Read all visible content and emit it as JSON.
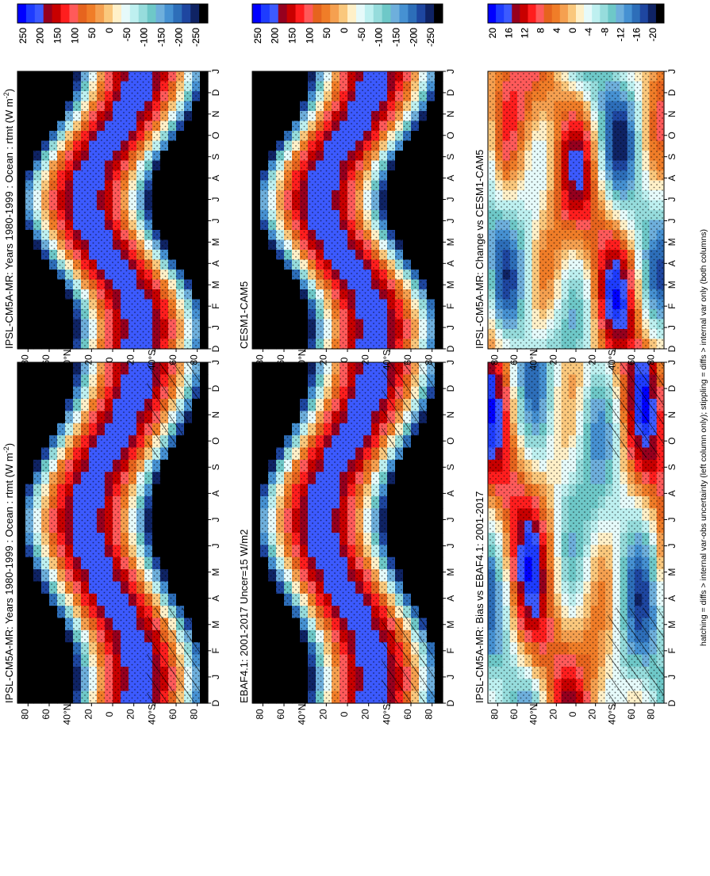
{
  "figure": {
    "footnote": "hatching = diffs > internal var-obs uncertainty (left column only); stippling = diffs > internal var only (both columns)"
  },
  "chart_data": [
    {
      "type": "heatmap",
      "id": "ipsl_abs_left",
      "title": "IPSL-CM5A-MR: Years 1980-1999 : Ocean : rtmt (W m",
      "title_sup": "-2",
      "title_close": ")",
      "x_ticks": [
        "D",
        "J",
        "F",
        "M",
        "A",
        "M",
        "J",
        "J",
        "A",
        "S",
        "O",
        "N",
        "D",
        "J"
      ],
      "y_ticks": [
        "80",
        "60",
        "40",
        "20",
        "0",
        "20",
        "40",
        "60",
        "80"
      ],
      "y_tick_suffix": {
        "2": "°N",
        "6": "°S"
      },
      "stipple": true,
      "hatch": true,
      "colorbar": {
        "labels": [
          "250",
          "200",
          "150",
          "100",
          "50",
          "0",
          "-50",
          "-100",
          "-150",
          "-200",
          "-250"
        ]
      }
    },
    {
      "type": "heatmap",
      "id": "ipsl_abs_right",
      "title": "IPSL-CM5A-MR: Years 1980-1999 : Ocean : rtmt (W m",
      "title_sup": "-2",
      "title_close": ")",
      "x_ticks": [
        "D",
        "J",
        "F",
        "M",
        "A",
        "M",
        "J",
        "J",
        "A",
        "S",
        "O",
        "N",
        "D",
        "J"
      ],
      "y_ticks": [
        "80",
        "60",
        "40",
        "20",
        "0",
        "20",
        "40",
        "60",
        "80"
      ],
      "y_tick_suffix": {
        "2": "°N",
        "6": "°S"
      },
      "stipple": true,
      "hatch": false,
      "colorbar": {
        "labels": [
          "250",
          "200",
          "150",
          "100",
          "50",
          "0",
          "-50",
          "-100",
          "-150",
          "-200",
          "-250"
        ]
      }
    },
    {
      "type": "heatmap",
      "id": "ebaf_left",
      "title": "EBAF4.1: 2001-2017 Uncer=15 W/m2",
      "x_ticks": [
        "D",
        "J",
        "F",
        "M",
        "A",
        "M",
        "J",
        "J",
        "A",
        "S",
        "O",
        "N",
        "D",
        "J"
      ],
      "y_ticks": [
        "80",
        "60",
        "40",
        "20",
        "0",
        "20",
        "40",
        "60",
        "80"
      ],
      "y_tick_suffix": {
        "2": "°N",
        "6": "°S"
      },
      "stipple": true,
      "hatch": true,
      "colorbar": {
        "labels": [
          "250",
          "200",
          "150",
          "100",
          "50",
          "0",
          "-50",
          "-100",
          "-150",
          "-200",
          "-250"
        ]
      }
    },
    {
      "type": "heatmap",
      "id": "cesm_right",
      "title": "CESM1-CAM5",
      "x_ticks": [
        "D",
        "J",
        "F",
        "M",
        "A",
        "M",
        "J",
        "J",
        "A",
        "S",
        "O",
        "N",
        "D",
        "J"
      ],
      "y_ticks": [
        "80",
        "60",
        "40",
        "20",
        "0",
        "20",
        "40",
        "60",
        "80"
      ],
      "y_tick_suffix": {
        "2": "°N",
        "6": "°S"
      },
      "stipple": true,
      "hatch": false,
      "colorbar": {
        "labels": [
          "250",
          "200",
          "150",
          "100",
          "50",
          "0",
          "-50",
          "-100",
          "-150",
          "-200",
          "-250"
        ]
      }
    },
    {
      "type": "heatmap",
      "id": "bias_left",
      "title": "IPSL-CM5A-MR: Bias vs EBAF4.1: 2001-2017",
      "x_ticks": [
        "D",
        "J",
        "F",
        "M",
        "A",
        "M",
        "J",
        "J",
        "A",
        "S",
        "O",
        "N",
        "D",
        "J"
      ],
      "y_ticks": [
        "80",
        "60",
        "40",
        "20",
        "0",
        "20",
        "40",
        "60",
        "80"
      ],
      "y_tick_suffix": {
        "2": "°N",
        "6": "°S"
      },
      "stipple": true,
      "hatch": true,
      "colorbar": {
        "labels": [
          "20",
          "16",
          "12",
          "8",
          "4",
          "0",
          "-4",
          "-8",
          "-12",
          "-16",
          "-20"
        ]
      }
    },
    {
      "type": "heatmap",
      "id": "change_right",
      "title": "IPSL-CM5A-MR: Change vs CESM1-CAM5",
      "x_ticks": [
        "D",
        "J",
        "F",
        "M",
        "A",
        "M",
        "J",
        "J",
        "A",
        "S",
        "O",
        "N",
        "D",
        "J"
      ],
      "y_ticks": [
        "80",
        "60",
        "40",
        "20",
        "0",
        "20",
        "40",
        "60",
        "80"
      ],
      "y_tick_suffix": {
        "2": "°N",
        "6": "°S"
      },
      "stipple": true,
      "hatch": false,
      "colorbar": {
        "labels": [
          "20",
          "16",
          "12",
          "8",
          "4",
          "0",
          "-4",
          "-8",
          "-12",
          "-16",
          "-20"
        ]
      }
    }
  ],
  "colors": {
    "ramp": [
      "#0000ff",
      "#1e3cff",
      "#3c5aff",
      "#96001e",
      "#c80000",
      "#ff1e1e",
      "#ff5a5a",
      "#e6641e",
      "#f07d28",
      "#f5a050",
      "#fac87d",
      "#fff0c8",
      "#e6fafa",
      "#bef0f0",
      "#96dcdc",
      "#6ec8c8",
      "#6eafdc",
      "#4691d2",
      "#2d6eb9",
      "#1e46a0",
      "#0f2364",
      "#000000"
    ],
    "stipple": "#000000"
  }
}
